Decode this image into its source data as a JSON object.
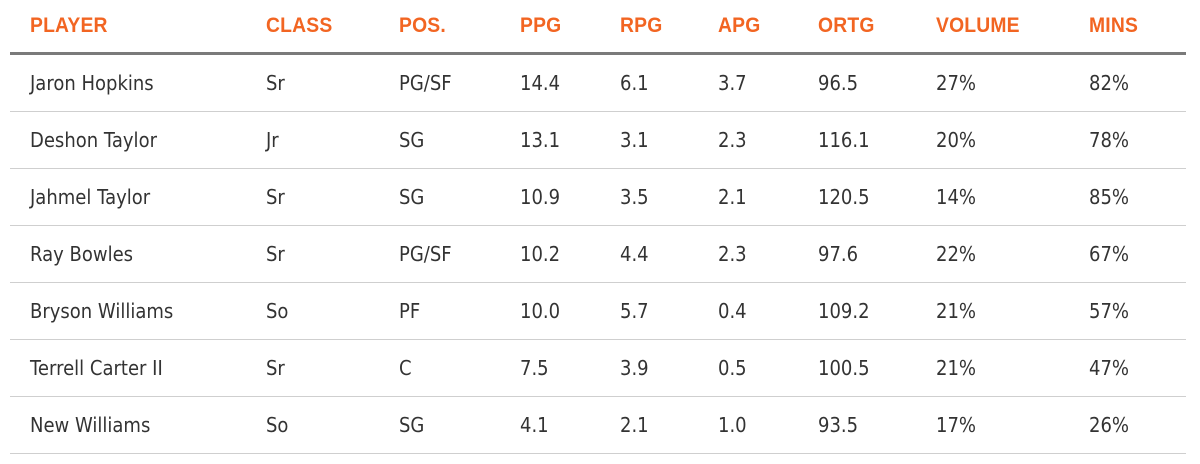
{
  "table": {
    "headers": [
      "PLAYER",
      "CLASS",
      "POS.",
      "PPG",
      "RPG",
      "APG",
      "ORTG",
      "VOLUME",
      "MINS"
    ],
    "rows": [
      [
        "Jaron Hopkins",
        "Sr",
        "PG/SF",
        "14.4",
        "6.1",
        "3.7",
        "96.5",
        "27%",
        "82%"
      ],
      [
        "Deshon Taylor",
        "Jr",
        "SG",
        "13.1",
        "3.1",
        "2.3",
        "116.1",
        "20%",
        "78%"
      ],
      [
        "Jahmel Taylor",
        "Sr",
        "SG",
        "10.9",
        "3.5",
        "2.1",
        "120.5",
        "14%",
        "85%"
      ],
      [
        "Ray Bowles",
        "Sr",
        "PG/SF",
        "10.2",
        "4.4",
        "2.3",
        "97.6",
        "22%",
        "67%"
      ],
      [
        "Bryson Williams",
        "So",
        "PF",
        "10.0",
        "5.7",
        "0.4",
        "109.2",
        "21%",
        "57%"
      ],
      [
        "Terrell Carter II",
        "Sr",
        "C",
        "7.5",
        "3.9",
        "0.5",
        "100.5",
        "21%",
        "47%"
      ],
      [
        "New Williams",
        "So",
        "SG",
        "4.1",
        "2.1",
        "1.0",
        "93.5",
        "17%",
        "26%"
      ]
    ]
  },
  "colors": {
    "header_text": "#f26522",
    "body_text": "#333333",
    "header_rule": "#7a7a7a",
    "row_rule": "#cfcfcf"
  }
}
